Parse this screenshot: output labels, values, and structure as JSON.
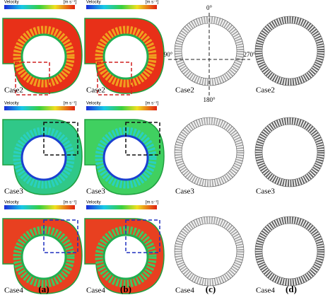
{
  "colorbar": {
    "title": "Velocity",
    "unit": "[m s⁻¹]"
  },
  "rows": [
    {
      "labels": [
        "Case2",
        "Case2",
        "Case2",
        "Case2"
      ]
    },
    {
      "labels": [
        "Case3",
        "Case3",
        "Case3",
        "Case3"
      ]
    },
    {
      "labels": [
        "Case4",
        "Case4",
        "Case4",
        "Case4"
      ]
    }
  ],
  "angles": {
    "top": "0°",
    "left": "90°",
    "bottom": "180°",
    "right": "270°"
  },
  "panel_labels": [
    "(a)",
    "(b)",
    "(c)",
    "(d)"
  ]
}
